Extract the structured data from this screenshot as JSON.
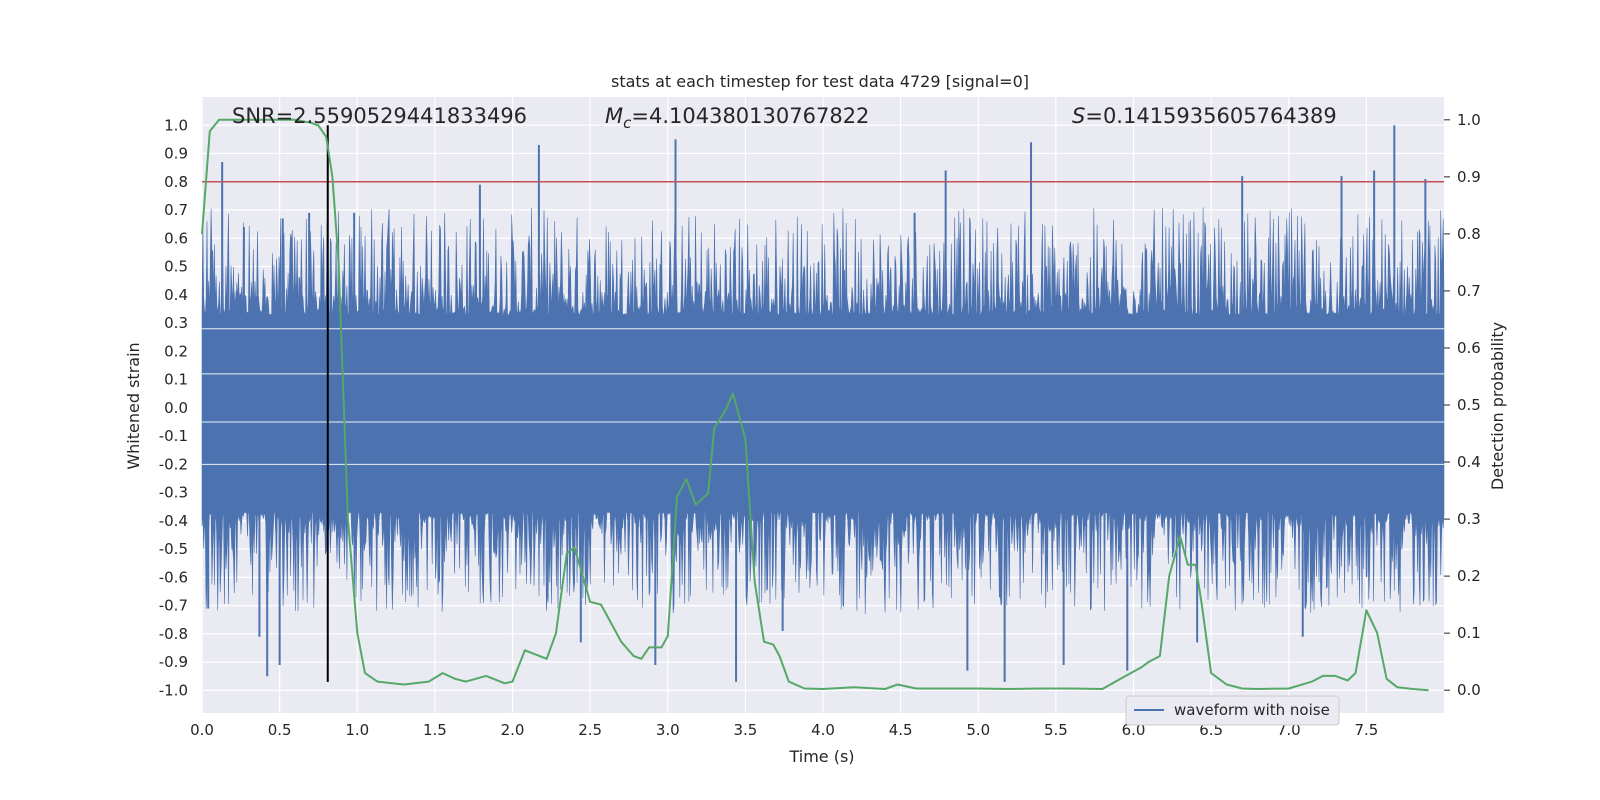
{
  "chart_data": {
    "type": "line",
    "title": "stats at each timestep for test data 4729 [signal=0]",
    "xlabel": "Time (s)",
    "ylabel": "Whitened strain",
    "ylabel_right": "Detection probability",
    "xlim": [
      0.0,
      8.0
    ],
    "ylim": [
      -1.08,
      1.1
    ],
    "ylim_right": [
      -0.04,
      1.04
    ],
    "xticks": [
      0.0,
      0.5,
      1.0,
      1.5,
      2.0,
      2.5,
      3.0,
      3.5,
      4.0,
      4.5,
      5.0,
      5.5,
      6.0,
      6.5,
      7.0,
      7.5
    ],
    "xtick_labels": [
      "0.0",
      "0.5",
      "1.0",
      "1.5",
      "2.0",
      "2.5",
      "3.0",
      "3.5",
      "4.0",
      "4.5",
      "5.0",
      "5.5",
      "6.0",
      "6.5",
      "7.0",
      "7.5"
    ],
    "yticks": [
      1.0,
      0.9,
      0.8,
      0.7,
      0.6,
      0.5,
      0.4,
      0.3,
      0.2,
      0.1,
      0.0,
      -0.1,
      -0.2,
      -0.3,
      -0.4,
      -0.5,
      -0.6,
      -0.7,
      -0.8,
      -0.9,
      -1.0
    ],
    "ytick_labels": [
      "1.0",
      "0.9",
      "0.8",
      "0.7",
      "0.6",
      "0.5",
      "0.4",
      "0.3",
      "0.2",
      "0.1",
      "0.0",
      "-0.1",
      "-0.2",
      "-0.3",
      "-0.4",
      "-0.5",
      "-0.6",
      "-0.7",
      "-0.8",
      "-0.9",
      "-1.0"
    ],
    "yticks_right": [
      1.0,
      0.9,
      0.8,
      0.7,
      0.6,
      0.5,
      0.4,
      0.3,
      0.2,
      0.1,
      0.0
    ],
    "ytick_labels_right": [
      "1.0",
      "0.9",
      "0.8",
      "0.7",
      "0.6",
      "0.5",
      "0.4",
      "0.3",
      "0.2",
      "0.1",
      "0.0"
    ],
    "annotations": {
      "snr": "SNR=2.5590529441833496",
      "mc_symbol": "M",
      "mc_sub": "c",
      "mc_value": "=4.104380130767822",
      "s_symbol": "S",
      "s_value": "=0.1415935605764389"
    },
    "threshold_line": {
      "axis": "left",
      "y": 0.8,
      "color": "#c44e52"
    },
    "marker_line": {
      "x": 0.81,
      "y_from": -0.97,
      "y_to": 1.0,
      "color": "#000000"
    },
    "waveform": {
      "name": "waveform with noise",
      "color": "#4c72b0",
      "band_upper": 0.33,
      "band_lower": -0.37,
      "spikes": [
        {
          "x": 0.04,
          "y": -0.71
        },
        {
          "x": 0.13,
          "y": 0.87
        },
        {
          "x": 0.27,
          "y": 0.64
        },
        {
          "x": 0.37,
          "y": -0.81
        },
        {
          "x": 0.42,
          "y": -0.95
        },
        {
          "x": 0.5,
          "y": -0.91
        },
        {
          "x": 0.52,
          "y": 0.67
        },
        {
          "x": 0.69,
          "y": 0.69
        },
        {
          "x": 0.98,
          "y": 0.69
        },
        {
          "x": 1.79,
          "y": 0.79
        },
        {
          "x": 2.17,
          "y": 0.93
        },
        {
          "x": 2.44,
          "y": -0.83
        },
        {
          "x": 2.92,
          "y": -0.91
        },
        {
          "x": 3.05,
          "y": 0.95
        },
        {
          "x": 3.44,
          "y": -0.97
        },
        {
          "x": 3.74,
          "y": -0.79
        },
        {
          "x": 4.59,
          "y": 0.69
        },
        {
          "x": 4.79,
          "y": 0.84
        },
        {
          "x": 4.93,
          "y": -0.93
        },
        {
          "x": 5.17,
          "y": -0.97
        },
        {
          "x": 5.34,
          "y": 0.94
        },
        {
          "x": 5.55,
          "y": -0.91
        },
        {
          "x": 5.96,
          "y": -0.93
        },
        {
          "x": 6.41,
          "y": -0.83
        },
        {
          "x": 6.7,
          "y": 0.82
        },
        {
          "x": 7.09,
          "y": -0.81
        },
        {
          "x": 7.34,
          "y": 0.82
        },
        {
          "x": 7.55,
          "y": 0.84
        },
        {
          "x": 7.68,
          "y": 1.0
        },
        {
          "x": 7.88,
          "y": 0.81
        }
      ]
    },
    "probability": {
      "name": "detection probability",
      "axis": "right",
      "color": "#55a868",
      "x": [
        0.0,
        0.05,
        0.11,
        0.2,
        0.3,
        0.4,
        0.5,
        0.6,
        0.7,
        0.75,
        0.8,
        0.84,
        0.88,
        0.9,
        0.94,
        1.0,
        1.05,
        1.13,
        1.3,
        1.46,
        1.55,
        1.63,
        1.7,
        1.83,
        1.95,
        2.0,
        2.08,
        2.22,
        2.28,
        2.35,
        2.4,
        2.5,
        2.57,
        2.62,
        2.7,
        2.78,
        2.83,
        2.88,
        2.96,
        3.0,
        3.06,
        3.12,
        3.18,
        3.26,
        3.3,
        3.37,
        3.42,
        3.5,
        3.56,
        3.62,
        3.68,
        3.72,
        3.78,
        3.88,
        4.0,
        4.2,
        4.4,
        4.48,
        4.6,
        4.8,
        5.0,
        5.2,
        5.4,
        5.6,
        5.8,
        5.95,
        6.05,
        6.1,
        6.17,
        6.23,
        6.3,
        6.35,
        6.4,
        6.44,
        6.5,
        6.6,
        6.7,
        6.8,
        7.0,
        7.15,
        7.22,
        7.3,
        7.38,
        7.43,
        7.5,
        7.57,
        7.63,
        7.7,
        7.8,
        7.9
      ],
      "y": [
        0.8,
        0.98,
        1.0,
        1.0,
        1.0,
        1.0,
        1.0,
        1.0,
        0.995,
        0.99,
        0.97,
        0.9,
        0.75,
        0.6,
        0.3,
        0.1,
        0.03,
        0.015,
        0.01,
        0.015,
        0.03,
        0.02,
        0.015,
        0.025,
        0.012,
        0.015,
        0.07,
        0.055,
        0.1,
        0.24,
        0.25,
        0.155,
        0.15,
        0.125,
        0.085,
        0.06,
        0.055,
        0.075,
        0.075,
        0.095,
        0.34,
        0.37,
        0.325,
        0.345,
        0.46,
        0.49,
        0.52,
        0.44,
        0.19,
        0.085,
        0.08,
        0.06,
        0.015,
        0.003,
        0.002,
        0.005,
        0.002,
        0.01,
        0.003,
        0.003,
        0.003,
        0.002,
        0.003,
        0.003,
        0.002,
        0.025,
        0.04,
        0.05,
        0.06,
        0.2,
        0.27,
        0.22,
        0.22,
        0.15,
        0.03,
        0.01,
        0.003,
        0.002,
        0.003,
        0.015,
        0.025,
        0.025,
        0.017,
        0.03,
        0.14,
        0.1,
        0.02,
        0.005,
        0.002,
        0.0
      ]
    },
    "legend": {
      "placement": "lower-right",
      "entries": [
        "waveform with noise"
      ]
    },
    "colors": {
      "plot_bg": "#eaeaf2",
      "grid": "#ffffff",
      "threshold": "#c44e52",
      "marker": "#000000"
    },
    "grid": true
  }
}
